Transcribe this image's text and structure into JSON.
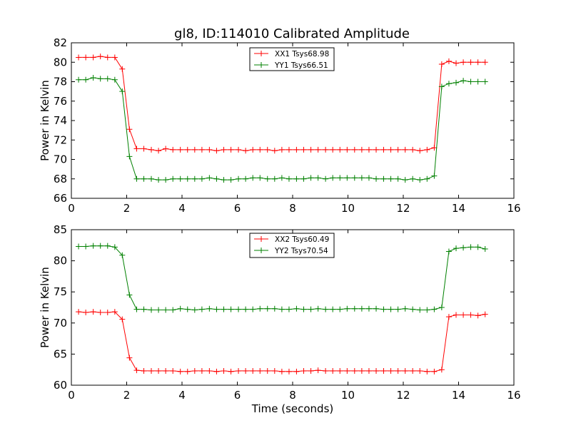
{
  "title": "gl8, ID:114010 Calibrated Amplitude",
  "chart_data": [
    {
      "type": "line",
      "ylabel": "Power in Kelvin",
      "xlabel": "",
      "xlim": [
        0,
        16
      ],
      "ylim": [
        66,
        82
      ],
      "xticks": [
        0,
        2,
        4,
        6,
        8,
        10,
        12,
        14,
        16
      ],
      "yticks": [
        66,
        68,
        70,
        72,
        74,
        76,
        78,
        80,
        82
      ],
      "legend": "top-center",
      "x": [
        0.26,
        0.52,
        0.79,
        1.05,
        1.31,
        1.57,
        1.84,
        2.1,
        2.36,
        2.62,
        2.89,
        3.15,
        3.41,
        3.67,
        3.94,
        4.2,
        4.46,
        4.72,
        4.99,
        5.25,
        5.51,
        5.77,
        6.04,
        6.3,
        6.56,
        6.82,
        7.09,
        7.35,
        7.61,
        7.87,
        8.14,
        8.4,
        8.66,
        8.92,
        9.19,
        9.45,
        9.71,
        9.97,
        10.24,
        10.5,
        10.76,
        11.02,
        11.29,
        11.55,
        11.81,
        12.07,
        12.34,
        12.6,
        12.86,
        13.12,
        13.39,
        13.65,
        13.91,
        14.17,
        14.44,
        14.7,
        14.96
      ],
      "series": [
        {
          "name": "XX1 Tsys68.98",
          "color": "#ff0000",
          "values": [
            80.5,
            80.5,
            80.5,
            80.6,
            80.5,
            80.5,
            79.3,
            73.1,
            71.1,
            71.1,
            71.0,
            70.9,
            71.1,
            71.0,
            71.0,
            71.0,
            71.0,
            71.0,
            71.0,
            70.9,
            71.0,
            71.0,
            71.0,
            70.9,
            71.0,
            71.0,
            71.0,
            70.9,
            71.0,
            71.0,
            71.0,
            71.0,
            71.0,
            71.0,
            71.0,
            71.0,
            71.0,
            71.0,
            71.0,
            71.0,
            71.0,
            71.0,
            71.0,
            71.0,
            71.0,
            71.0,
            71.0,
            70.9,
            71.0,
            71.2,
            79.8,
            80.1,
            79.9,
            80.0,
            80.0,
            80.0,
            80.0
          ]
        },
        {
          "name": "YY1 Tsys66.51",
          "color": "#008000",
          "values": [
            78.2,
            78.2,
            78.4,
            78.3,
            78.3,
            78.2,
            77.0,
            70.3,
            68.0,
            68.0,
            68.0,
            67.9,
            67.9,
            68.0,
            68.0,
            68.0,
            68.0,
            68.0,
            68.1,
            68.0,
            67.9,
            67.9,
            68.0,
            68.0,
            68.1,
            68.1,
            68.0,
            68.0,
            68.1,
            68.0,
            68.0,
            68.0,
            68.1,
            68.1,
            68.0,
            68.1,
            68.1,
            68.1,
            68.1,
            68.1,
            68.1,
            68.0,
            68.0,
            68.0,
            68.0,
            67.9,
            68.0,
            67.9,
            68.0,
            68.3,
            77.5,
            77.8,
            77.9,
            78.1,
            78.0,
            78.0,
            78.0
          ]
        }
      ]
    },
    {
      "type": "line",
      "ylabel": "Power in Kelvin",
      "xlabel": "Time (seconds)",
      "xlim": [
        0,
        16
      ],
      "ylim": [
        60,
        85
      ],
      "xticks": [
        0,
        2,
        4,
        6,
        8,
        10,
        12,
        14,
        16
      ],
      "yticks": [
        60,
        65,
        70,
        75,
        80,
        85
      ],
      "legend": "top-center",
      "x": [
        0.26,
        0.52,
        0.79,
        1.05,
        1.31,
        1.57,
        1.84,
        2.1,
        2.36,
        2.62,
        2.89,
        3.15,
        3.41,
        3.67,
        3.94,
        4.2,
        4.46,
        4.72,
        4.99,
        5.25,
        5.51,
        5.77,
        6.04,
        6.3,
        6.56,
        6.82,
        7.09,
        7.35,
        7.61,
        7.87,
        8.14,
        8.4,
        8.66,
        8.92,
        9.19,
        9.45,
        9.71,
        9.97,
        10.24,
        10.5,
        10.76,
        11.02,
        11.29,
        11.55,
        11.81,
        12.07,
        12.34,
        12.6,
        12.86,
        13.12,
        13.39,
        13.65,
        13.91,
        14.17,
        14.44,
        14.7,
        14.96
      ],
      "series": [
        {
          "name": "XX2 Tsys60.49",
          "color": "#ff0000",
          "values": [
            71.8,
            71.7,
            71.8,
            71.7,
            71.7,
            71.8,
            70.6,
            64.4,
            62.4,
            62.3,
            62.3,
            62.3,
            62.3,
            62.3,
            62.2,
            62.2,
            62.3,
            62.3,
            62.3,
            62.2,
            62.3,
            62.2,
            62.3,
            62.3,
            62.3,
            62.3,
            62.3,
            62.3,
            62.2,
            62.2,
            62.2,
            62.3,
            62.3,
            62.4,
            62.3,
            62.3,
            62.3,
            62.3,
            62.3,
            62.3,
            62.3,
            62.3,
            62.3,
            62.3,
            62.3,
            62.3,
            62.3,
            62.3,
            62.2,
            62.2,
            62.5,
            71.0,
            71.3,
            71.3,
            71.3,
            71.2,
            71.4
          ]
        },
        {
          "name": "YY2 Tsys70.54",
          "color": "#008000",
          "values": [
            82.3,
            82.3,
            82.4,
            82.4,
            82.4,
            82.2,
            80.9,
            74.5,
            72.2,
            72.2,
            72.1,
            72.1,
            72.1,
            72.1,
            72.3,
            72.2,
            72.1,
            72.2,
            72.3,
            72.2,
            72.2,
            72.2,
            72.2,
            72.2,
            72.2,
            72.3,
            72.3,
            72.3,
            72.2,
            72.2,
            72.3,
            72.2,
            72.2,
            72.3,
            72.2,
            72.2,
            72.2,
            72.3,
            72.3,
            72.3,
            72.3,
            72.3,
            72.2,
            72.2,
            72.2,
            72.3,
            72.2,
            72.1,
            72.1,
            72.2,
            72.5,
            81.5,
            82.0,
            82.1,
            82.2,
            82.2,
            81.9
          ]
        }
      ]
    }
  ]
}
